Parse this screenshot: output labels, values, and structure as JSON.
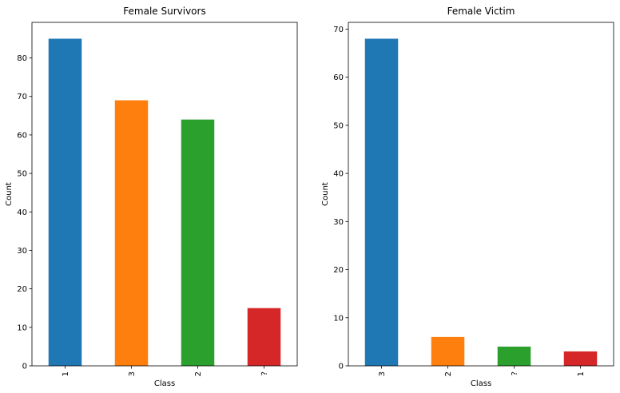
{
  "chart_data": [
    {
      "type": "bar",
      "title": "Female Survivors",
      "xlabel": "Class",
      "ylabel": "Count",
      "categories": [
        "1",
        "3",
        "2",
        "?"
      ],
      "values": [
        85,
        69,
        64,
        15
      ],
      "colors": [
        "#1f77b4",
        "#ff7f0e",
        "#2ca02c",
        "#d62728"
      ],
      "yticks": [
        0,
        10,
        20,
        30,
        40,
        50,
        60,
        70,
        80
      ],
      "ylim": [
        0,
        89.25
      ],
      "grid": false,
      "legend": "none"
    },
    {
      "type": "bar",
      "title": "Female Victim",
      "xlabel": "Class",
      "ylabel": "Count",
      "categories": [
        "3",
        "2",
        "?",
        "1"
      ],
      "values": [
        68,
        6,
        4,
        3
      ],
      "colors": [
        "#1f77b4",
        "#ff7f0e",
        "#2ca02c",
        "#d62728"
      ],
      "yticks": [
        0,
        10,
        20,
        30,
        40,
        50,
        60,
        70
      ],
      "ylim": [
        0,
        71.4
      ],
      "grid": false,
      "legend": "none"
    }
  ]
}
